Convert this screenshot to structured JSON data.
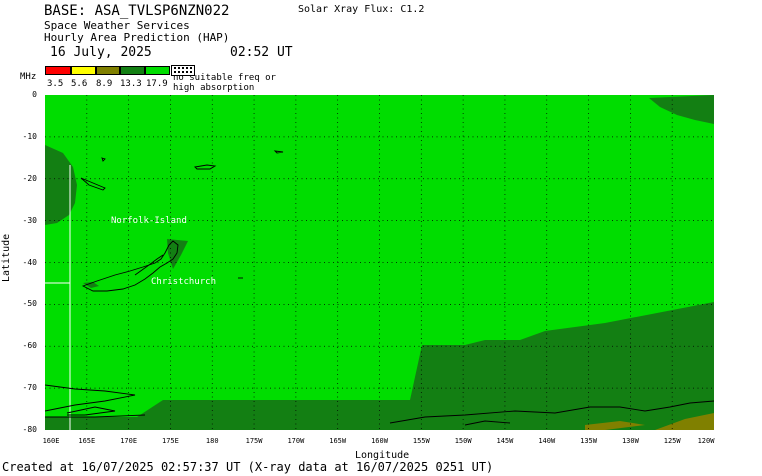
{
  "header": {
    "base_title": "BASE: ASA_TVLSP6NZN022",
    "xray_flux": "Solar Xray Flux: C1.2",
    "service_line1": "Space Weather Services",
    "service_line2": "Hourly Area Prediction (HAP)",
    "date": "16 July, 2025",
    "time": "02:52 UT"
  },
  "legend": {
    "unit": "MHz",
    "swatches": [
      {
        "color": "#ff0000"
      },
      {
        "color": "#ffff00"
      },
      {
        "color": "#808000"
      },
      {
        "color": "#137f13"
      },
      {
        "color": "#00dd00"
      }
    ],
    "labels": [
      "3.5",
      "5.6",
      "8.9",
      "13.3",
      "17.9"
    ],
    "no_suitable_line1": "no suitable freq or",
    "no_suitable_line2": "high absorption"
  },
  "axes": {
    "x_title": "Longitude",
    "y_title": "Latitude",
    "y_ticks": [
      "0",
      "-10",
      "-20",
      "-30",
      "-40",
      "-50",
      "-60",
      "-70",
      "-80"
    ],
    "x_ticks": [
      "160E",
      "165E",
      "170E",
      "175E",
      "180",
      "175W",
      "170W",
      "165W",
      "160W",
      "155W",
      "150W",
      "145W",
      "140W",
      "135W",
      "130W",
      "125W",
      "120W"
    ],
    "lat_range": [
      0,
      -80
    ],
    "lon_range": [
      "160E",
      "120W"
    ],
    "grid": true
  },
  "map_labels": {
    "norfolk": "Norfolk-Island",
    "christchurch": "Christchurch"
  },
  "colors": {
    "bright_green": "#00dd00",
    "dark_green": "#137f13",
    "olive": "#808000",
    "coast": "#000000",
    "label": "#ffffff"
  },
  "footer": {
    "created": "Created at 16/07/2025 02:57:37 UT (X-ray data at 16/07/2025 0251 UT)"
  }
}
